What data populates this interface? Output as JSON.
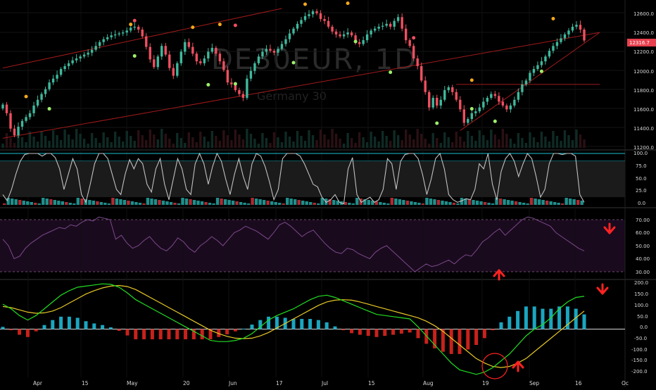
{
  "watermark": {
    "symbol": "DE30EUR, 1D",
    "name": "Germany 30"
  },
  "colors": {
    "bull": "#3fb89c",
    "bear": "#ef4f60",
    "trendline": "#a01a1a",
    "stoch": "#c0c0c0",
    "stoch_oversold": "#22c25a",
    "stoch_band": "#18c0d0",
    "rsi": "#7a4a8a",
    "rsi_up": "#ff2a2a",
    "macd_line": "#22dd22",
    "signal_line": "#e6c826",
    "hist_pos": "#1aa6c0",
    "hist_neg": "#c8221c",
    "arrow": "#ff2222",
    "fractal_high": "#f2a81a",
    "fractal_low": "#9ef06a",
    "fractal_high_small": "#ef4f60"
  },
  "x_axis": {
    "labels": [
      "Apr",
      "15",
      "May",
      "20",
      "Jun",
      "17",
      "Jul",
      "15",
      "Aug",
      "19",
      "Sep",
      "16",
      "Oc"
    ]
  },
  "price_axis": {
    "ticks": [
      "12600.0",
      "12400.0",
      "12200.0",
      "12000.0",
      "11800.0",
      "11600.0",
      "11400.0",
      "11200.0"
    ],
    "current_price": "12316.7"
  },
  "stoch_axis": {
    "ticks": [
      "100.0",
      "75.0",
      "50.0",
      "25.0",
      "0.0"
    ]
  },
  "rsi_axis": {
    "ticks": [
      "70.00",
      "60.00",
      "50.00",
      "40.00",
      "30.00"
    ]
  },
  "macd_axis": {
    "ticks": [
      "200.0",
      "150.0",
      "100.0",
      "50.0",
      "0.0",
      "-50.0",
      "-100.0",
      "-150.0",
      "-200.0"
    ]
  },
  "chart_data": [
    {
      "type": "candlestick",
      "ylim": [
        11200,
        12650
      ],
      "closes": [
        11650,
        11560,
        11400,
        11330,
        11420,
        11480,
        11520,
        11560,
        11640,
        11700,
        11760,
        11810,
        11880,
        11920,
        11960,
        12020,
        12050,
        12080,
        12110,
        12130,
        12150,
        12170,
        12190,
        12220,
        12260,
        12300,
        12330,
        12350,
        12370,
        12380,
        12390,
        12400,
        12420,
        12450,
        12460,
        12430,
        12360,
        12250,
        12120,
        12040,
        12150,
        12260,
        12170,
        12030,
        11950,
        12080,
        12200,
        12300,
        12250,
        12180,
        12100,
        12080,
        12130,
        12200,
        12240,
        12180,
        12100,
        12010,
        11880,
        11860,
        11800,
        11760,
        11720,
        11920,
        12000,
        12080,
        12150,
        12200,
        12230,
        12210,
        12190,
        12230,
        12280,
        12330,
        12390,
        12440,
        12490,
        12530,
        12570,
        12590,
        12620,
        12600,
        12540,
        12520,
        12460,
        12410,
        12380,
        12360,
        12380,
        12400,
        12370,
        12300,
        12280,
        12320,
        12380,
        12420,
        12440,
        12460,
        12470,
        12490,
        12460,
        12520,
        12560,
        12440,
        12320,
        12260,
        12130,
        12050,
        11900,
        11780,
        11620,
        11720,
        11640,
        11700,
        11800,
        11830,
        11780,
        11700,
        11600,
        11460,
        11500,
        11560,
        11580,
        11620,
        11680,
        11720,
        11760,
        11740,
        11680,
        11640,
        11600,
        11640,
        11700,
        11780,
        11860,
        11900,
        11980,
        12020,
        12060,
        12100,
        12150,
        12210,
        12260,
        12300,
        12340,
        12380,
        12420,
        12460,
        12480,
        12430,
        12317
      ],
      "fractal_highs": [
        [
          6,
          11690
        ],
        [
          33,
          12440
        ],
        [
          34,
          12480
        ],
        [
          49,
          12410
        ],
        [
          56,
          12440
        ],
        [
          60,
          12430
        ],
        [
          78,
          12650
        ],
        [
          89,
          12660
        ],
        [
          106,
          12300
        ],
        [
          121,
          11860
        ],
        [
          142,
          12500
        ]
      ],
      "fractal_lows": [
        [
          12,
          11650
        ],
        [
          34,
          12200
        ],
        [
          53,
          11900
        ],
        [
          60,
          11910
        ],
        [
          75,
          12130
        ],
        [
          91,
          12350
        ],
        [
          100,
          12030
        ],
        [
          112,
          11500
        ],
        [
          121,
          11650
        ],
        [
          127,
          11520
        ],
        [
          139,
          12040
        ]
      ],
      "trendlines": [
        {
          "from": [
            0,
            12030
          ],
          "to": [
            72,
            12650
          ]
        },
        {
          "from": [
            0,
            11300
          ],
          "to": [
            154,
            12400
          ]
        },
        {
          "from": [
            117,
            11860
          ],
          "to": [
            154,
            11860
          ]
        },
        {
          "from": [
            118,
            11380
          ],
          "to": [
            154,
            12400
          ]
        }
      ]
    },
    {
      "type": "line",
      "name_hidden": "Stochastic",
      "ylim": [
        0,
        100
      ],
      "values": [
        20,
        8,
        30,
        60,
        85,
        98,
        100,
        100,
        100,
        95,
        100,
        100,
        92,
        70,
        30,
        60,
        90,
        70,
        20,
        5,
        40,
        80,
        100,
        100,
        90,
        60,
        30,
        20,
        60,
        88,
        70,
        90,
        80,
        40,
        25,
        70,
        90,
        40,
        10,
        50,
        90,
        70,
        30,
        20,
        80,
        100,
        80,
        40,
        75,
        100,
        85,
        50,
        20,
        60,
        90,
        55,
        30,
        80,
        100,
        95,
        75,
        45,
        10,
        30,
        90,
        100,
        100,
        100,
        95,
        80,
        60,
        40,
        35,
        15,
        5,
        10,
        20,
        5,
        2,
        70,
        92,
        20,
        5,
        10,
        15,
        5,
        10,
        30,
        90,
        80,
        30,
        85,
        98,
        100,
        100,
        90,
        60,
        20,
        50,
        90,
        100,
        70,
        20,
        10,
        5,
        8,
        12,
        10,
        30,
        80,
        70,
        100,
        40,
        10,
        65,
        90,
        100,
        85,
        55,
        80,
        100,
        90,
        55,
        15,
        30,
        80,
        100,
        100,
        98,
        100,
        100,
        95,
        20,
        5
      ]
    },
    {
      "type": "line",
      "name_hidden": "RSI",
      "ylim": [
        30,
        70
      ],
      "values": [
        55,
        50,
        40,
        42,
        48,
        52,
        55,
        58,
        60,
        62,
        64,
        63,
        66,
        65,
        68,
        70,
        69,
        72,
        71,
        70,
        55,
        58,
        52,
        48,
        50,
        54,
        57,
        52,
        48,
        46,
        50,
        56,
        53,
        48,
        45,
        50,
        53,
        57,
        54,
        50,
        55,
        60,
        62,
        65,
        63,
        61,
        58,
        55,
        60,
        66,
        68,
        65,
        61,
        57,
        60,
        62,
        57,
        52,
        48,
        45,
        44,
        48,
        47,
        44,
        42,
        40,
        45,
        48,
        50,
        46,
        42,
        38,
        34,
        30,
        33,
        36,
        34,
        35,
        37,
        39,
        36,
        40,
        43,
        42,
        47,
        53,
        56,
        60,
        63,
        58,
        62,
        66,
        70,
        72,
        71,
        69,
        67,
        65,
        60,
        57,
        54,
        51,
        48,
        46
      ]
    },
    {
      "type": "line",
      "name_hidden": "MACD",
      "ylim": [
        -210,
        210
      ],
      "macd": [
        110,
        90,
        60,
        40,
        60,
        90,
        120,
        150,
        170,
        185,
        190,
        195,
        200,
        198,
        185,
        160,
        130,
        110,
        90,
        70,
        50,
        30,
        10,
        -10,
        -30,
        -50,
        -55,
        -55,
        -50,
        -40,
        -20,
        10,
        40,
        60,
        75,
        90,
        110,
        130,
        145,
        150,
        140,
        125,
        110,
        95,
        80,
        65,
        60,
        55,
        50,
        45,
        10,
        -30,
        -70,
        -110,
        -150,
        -180,
        -190,
        -200,
        -190,
        -170,
        -140,
        -110,
        -70,
        -30,
        0,
        20,
        50,
        90,
        120,
        140,
        145
      ],
      "signal": [
        100,
        95,
        85,
        75,
        70,
        72,
        80,
        95,
        115,
        135,
        155,
        170,
        182,
        190,
        193,
        188,
        175,
        155,
        135,
        115,
        95,
        75,
        55,
        35,
        15,
        -5,
        -20,
        -32,
        -40,
        -42,
        -40,
        -30,
        -15,
        5,
        25,
        45,
        65,
        85,
        105,
        120,
        128,
        130,
        128,
        120,
        110,
        100,
        90,
        80,
        70,
        60,
        50,
        35,
        15,
        -10,
        -40,
        -70,
        -100,
        -130,
        -150,
        -165,
        -170,
        -165,
        -150,
        -130,
        -100,
        -70,
        -40,
        -10,
        20,
        50,
        80
      ],
      "histogram": [
        10,
        -5,
        -25,
        -35,
        -10,
        18,
        40,
        55,
        55,
        50,
        35,
        25,
        18,
        8,
        -8,
        -28,
        -45,
        -45,
        -45,
        -45,
        -45,
        -45,
        -45,
        -45,
        -45,
        -45,
        -35,
        -23,
        -10,
        2,
        20,
        40,
        55,
        55,
        50,
        45,
        45,
        45,
        40,
        30,
        12,
        -5,
        -18,
        -25,
        -30,
        -35,
        -30,
        -25,
        -20,
        -15,
        -40,
        -65,
        -85,
        -100,
        -110,
        -110,
        -90,
        -70,
        -40,
        -5,
        30,
        55,
        80,
        100,
        100,
        90,
        90,
        100,
        100,
        90,
        65
      ]
    }
  ]
}
